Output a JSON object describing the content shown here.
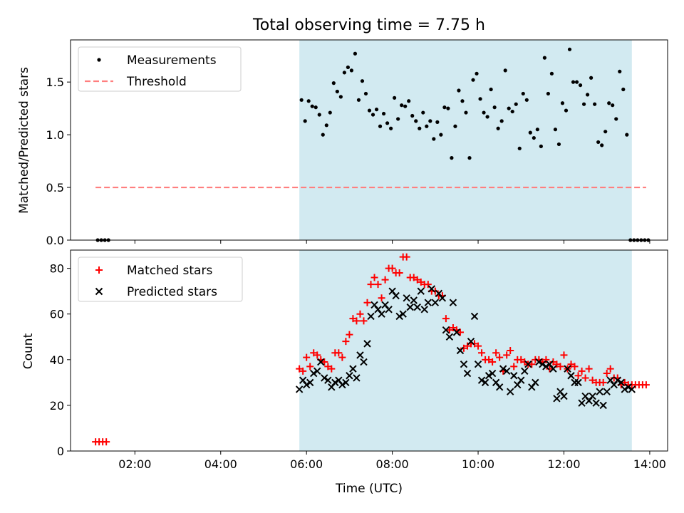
{
  "chart_data": [
    {
      "type": "scatter",
      "title": "Total observing time = 7.75 h",
      "ylabel": "Matched/Predicted stars",
      "xlim": [
        "00:30",
        "14:25"
      ],
      "ylim": [
        0,
        1.9
      ],
      "yticks": [
        "0.0",
        "0.5",
        "1.0",
        "1.5"
      ],
      "grid": false,
      "legend_position": "top-left",
      "shaded_interval": [
        "05:50",
        "13:35"
      ],
      "shade_color": "#add8e6",
      "series": [
        {
          "name": "Measurements",
          "kind": "points",
          "color": "#000000",
          "x": [
            "01:08",
            "01:13",
            "01:18",
            "01:23",
            "05:53",
            "05:58",
            "06:03",
            "06:08",
            "06:13",
            "06:18",
            "06:23",
            "06:28",
            "06:33",
            "06:38",
            "06:43",
            "06:48",
            "06:53",
            "06:58",
            "07:03",
            "07:08",
            "07:13",
            "07:18",
            "07:23",
            "07:28",
            "07:33",
            "07:38",
            "07:43",
            "07:48",
            "07:53",
            "07:58",
            "08:03",
            "08:08",
            "08:13",
            "08:18",
            "08:23",
            "08:28",
            "08:33",
            "08:38",
            "08:43",
            "08:48",
            "08:53",
            "08:58",
            "09:03",
            "09:08",
            "09:13",
            "09:18",
            "09:23",
            "09:28",
            "09:33",
            "09:38",
            "09:43",
            "09:48",
            "09:53",
            "09:58",
            "10:03",
            "10:08",
            "10:13",
            "10:18",
            "10:23",
            "10:28",
            "10:33",
            "10:38",
            "10:43",
            "10:48",
            "10:53",
            "10:58",
            "11:03",
            "11:08",
            "11:13",
            "11:18",
            "11:23",
            "11:28",
            "11:33",
            "11:38",
            "11:43",
            "11:48",
            "11:53",
            "11:58",
            "12:03",
            "12:08",
            "12:13",
            "12:18",
            "12:23",
            "12:28",
            "12:33",
            "12:38",
            "12:43",
            "12:48",
            "12:53",
            "12:58",
            "13:03",
            "13:08",
            "13:13",
            "13:18",
            "13:23",
            "13:28",
            "13:33",
            "13:38",
            "13:43",
            "13:48",
            "13:53",
            "13:58"
          ],
          "y": [
            0,
            0,
            0,
            0,
            1.33,
            1.13,
            1.32,
            1.27,
            1.26,
            1.19,
            1.0,
            1.09,
            1.21,
            1.49,
            1.41,
            1.36,
            1.59,
            1.64,
            1.61,
            1.77,
            1.33,
            1.51,
            1.39,
            1.23,
            1.19,
            1.24,
            1.08,
            1.2,
            1.11,
            1.06,
            1.35,
            1.15,
            1.28,
            1.27,
            1.32,
            1.18,
            1.13,
            1.06,
            1.21,
            1.08,
            1.13,
            0.96,
            1.12,
            1.0,
            1.26,
            1.25,
            0.78,
            1.08,
            1.42,
            1.32,
            1.21,
            0.78,
            1.52,
            1.58,
            1.34,
            1.21,
            1.17,
            1.43,
            1.26,
            1.06,
            1.13,
            1.61,
            1.25,
            1.22,
            1.29,
            0.87,
            1.39,
            1.33,
            1.02,
            0.97,
            1.05,
            0.89,
            1.73,
            1.39,
            1.58,
            1.05,
            0.91,
            1.3,
            1.23,
            1.81,
            1.5,
            1.5,
            1.47,
            1.29,
            1.38,
            1.54,
            1.29,
            0.93,
            0.9,
            1.03,
            1.3,
            1.28,
            1.15,
            1.6,
            1.43,
            1.0,
            0,
            0,
            0,
            0,
            0,
            0
          ]
        },
        {
          "name": "Threshold",
          "kind": "dashed-line",
          "color": "#ff7f7f",
          "x": [
            "01:05",
            "13:55"
          ],
          "y": [
            0.5,
            0.5
          ]
        }
      ]
    },
    {
      "type": "scatter",
      "xlabel": "Time (UTC)",
      "ylabel": "Count",
      "xlim": [
        "00:30",
        "14:25"
      ],
      "ylim": [
        0,
        88
      ],
      "xticks": [
        "02:00",
        "04:00",
        "06:00",
        "08:00",
        "10:00",
        "12:00",
        "14:00"
      ],
      "yticks": [
        "0",
        "20",
        "40",
        "60",
        "80"
      ],
      "grid": false,
      "legend_position": "top-left",
      "shaded_interval": [
        "05:50",
        "13:35"
      ],
      "shade_color": "#add8e6",
      "series": [
        {
          "name": "Matched stars",
          "marker": "plus",
          "color": "#ff0000",
          "x": [
            "01:05",
            "01:10",
            "01:15",
            "01:20",
            "05:50",
            "05:55",
            "06:00",
            "06:05",
            "06:10",
            "06:15",
            "06:20",
            "06:25",
            "06:30",
            "06:35",
            "06:40",
            "06:45",
            "06:50",
            "06:55",
            "07:00",
            "07:05",
            "07:10",
            "07:15",
            "07:20",
            "07:25",
            "07:30",
            "07:35",
            "07:40",
            "07:45",
            "07:50",
            "07:55",
            "08:00",
            "08:05",
            "08:10",
            "08:15",
            "08:20",
            "08:25",
            "08:30",
            "08:35",
            "08:40",
            "08:45",
            "08:50",
            "08:55",
            "09:00",
            "09:05",
            "09:10",
            "09:15",
            "09:20",
            "09:25",
            "09:30",
            "09:35",
            "09:40",
            "09:45",
            "09:50",
            "09:55",
            "10:00",
            "10:05",
            "10:10",
            "10:15",
            "10:20",
            "10:25",
            "10:30",
            "10:35",
            "10:40",
            "10:45",
            "10:50",
            "10:55",
            "11:00",
            "11:05",
            "11:10",
            "11:15",
            "11:20",
            "11:25",
            "11:30",
            "11:35",
            "11:40",
            "11:45",
            "11:50",
            "11:55",
            "12:00",
            "12:05",
            "12:10",
            "12:15",
            "12:20",
            "12:25",
            "12:30",
            "12:35",
            "12:40",
            "12:45",
            "12:50",
            "12:55",
            "13:00",
            "13:05",
            "13:10",
            "13:15",
            "13:20",
            "13:25",
            "13:30",
            "13:35",
            "13:40",
            "13:45",
            "13:50",
            "13:55"
          ],
          "y": [
            4,
            4,
            4,
            4,
            36,
            35,
            41,
            37,
            43,
            42,
            40,
            39,
            37,
            36,
            43,
            43,
            41,
            48,
            51,
            58,
            57,
            60,
            57,
            65,
            73,
            76,
            73,
            67,
            75,
            80,
            80,
            78,
            78,
            85,
            85,
            76,
            76,
            75,
            74,
            73,
            73,
            70,
            70,
            68,
            68,
            58,
            53,
            54,
            53,
            52,
            45,
            46,
            47,
            47,
            46,
            43,
            40,
            40,
            39,
            43,
            41,
            35,
            42,
            44,
            37,
            40,
            40,
            39,
            38,
            38,
            40,
            40,
            39,
            40,
            36,
            39,
            38,
            37,
            42,
            36,
            38,
            37,
            33,
            35,
            32,
            36,
            31,
            30,
            30,
            30,
            34,
            36,
            32,
            32,
            29,
            30,
            29,
            29,
            29,
            29,
            29,
            29
          ]
        },
        {
          "name": "Predicted stars",
          "marker": "x",
          "color": "#000000",
          "x": [
            "05:50",
            "05:55",
            "06:00",
            "06:05",
            "06:10",
            "06:15",
            "06:20",
            "06:25",
            "06:30",
            "06:35",
            "06:40",
            "06:45",
            "06:50",
            "06:55",
            "07:00",
            "07:05",
            "07:10",
            "07:15",
            "07:20",
            "07:25",
            "07:30",
            "07:35",
            "07:40",
            "07:45",
            "07:50",
            "07:55",
            "08:00",
            "08:05",
            "08:10",
            "08:15",
            "08:20",
            "08:25",
            "08:30",
            "08:35",
            "08:40",
            "08:45",
            "08:50",
            "08:55",
            "09:00",
            "09:05",
            "09:10",
            "09:15",
            "09:20",
            "09:25",
            "09:30",
            "09:35",
            "09:40",
            "09:45",
            "09:50",
            "09:55",
            "10:00",
            "10:05",
            "10:10",
            "10:15",
            "10:20",
            "10:25",
            "10:30",
            "10:35",
            "10:40",
            "10:45",
            "10:50",
            "10:55",
            "11:00",
            "11:05",
            "11:10",
            "11:15",
            "11:20",
            "11:25",
            "11:30",
            "11:35",
            "11:40",
            "11:45",
            "11:50",
            "11:55",
            "12:00",
            "12:05",
            "12:10",
            "12:15",
            "12:20",
            "12:25",
            "12:30",
            "12:35",
            "12:40",
            "12:45",
            "12:50",
            "12:55",
            "13:00",
            "13:05",
            "13:10",
            "13:15",
            "13:20",
            "13:25",
            "13:30",
            "13:35"
          ],
          "y": [
            27,
            31,
            29,
            30,
            34,
            35,
            39,
            32,
            31,
            28,
            30,
            31,
            29,
            30,
            33,
            36,
            32,
            42,
            39,
            47,
            59,
            64,
            62,
            60,
            64,
            62,
            70,
            68,
            59,
            60,
            67,
            63,
            66,
            63,
            70,
            62,
            65,
            71,
            65,
            69,
            67,
            53,
            50,
            65,
            52,
            44,
            38,
            34,
            48,
            59,
            38,
            31,
            30,
            33,
            34,
            30,
            28,
            36,
            35,
            26,
            33,
            29,
            31,
            35,
            38,
            28,
            30,
            39,
            38,
            37,
            38,
            36,
            23,
            26,
            24,
            36,
            33,
            30,
            30,
            21,
            24,
            22,
            24,
            21,
            26,
            20,
            26,
            31,
            29,
            31,
            30,
            27,
            28,
            27
          ]
        }
      ]
    }
  ]
}
